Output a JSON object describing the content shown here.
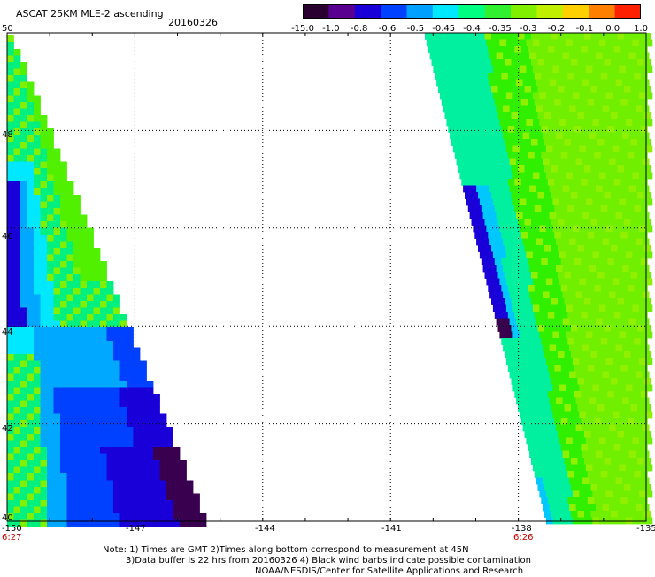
{
  "header": {
    "title": "ASCAT 25KM MLE-2 ascending",
    "date": "20160326"
  },
  "colorbar": {
    "labels": [
      "-15.0",
      "-1.0",
      "-0.8",
      "-0.6",
      "-0.5",
      "-0.45",
      "-0.4",
      "-0.35",
      "-0.3",
      "-0.2",
      "-0.1",
      "0.0",
      "1.0"
    ],
    "colors": [
      "#2a0030",
      "#5a0090",
      "#1a00d8",
      "#0040ff",
      "#00a0ff",
      "#00e8ff",
      "#00ff80",
      "#30f030",
      "#80f000",
      "#c0f000",
      "#ffd000",
      "#ff8000",
      "#ff2000"
    ]
  },
  "axes": {
    "lon_ticks": [
      "-150",
      "-147",
      "-144",
      "-141",
      "-138",
      "-135"
    ],
    "lat_ticks": [
      "50",
      "48",
      "46",
      "44",
      "42",
      "40"
    ],
    "lat_tick_labels_shown": [
      "50",
      "48",
      "46",
      "44",
      "42",
      "40"
    ],
    "time_labels": [
      {
        "text": "6:27",
        "at_lon": "-150"
      },
      {
        "text": "6:26",
        "at_lon": "-138"
      }
    ]
  },
  "swaths": {
    "left": {
      "colors": [
        "#3a0050",
        "#1a00d8",
        "#0040ff",
        "#00a8ff",
        "#00e8ff",
        "#00f080",
        "#50f000",
        "#80f000"
      ]
    },
    "right": {
      "colors": [
        "#3a0050",
        "#1a00d8",
        "#0040ff",
        "#00c8ff",
        "#00f0a0",
        "#30f000",
        "#70f000",
        "#90f000"
      ]
    }
  },
  "notes": {
    "line1": "Note: 1) Times are GMT 2)Times along bottom correspond to measurement at 45N",
    "line2": "3)Data buffer is 22 hrs from 20160326 4) Black wind barbs indicate possible contamination",
    "line3": "NOAA/NESDIS/Center for Satellite Applications and Research"
  }
}
